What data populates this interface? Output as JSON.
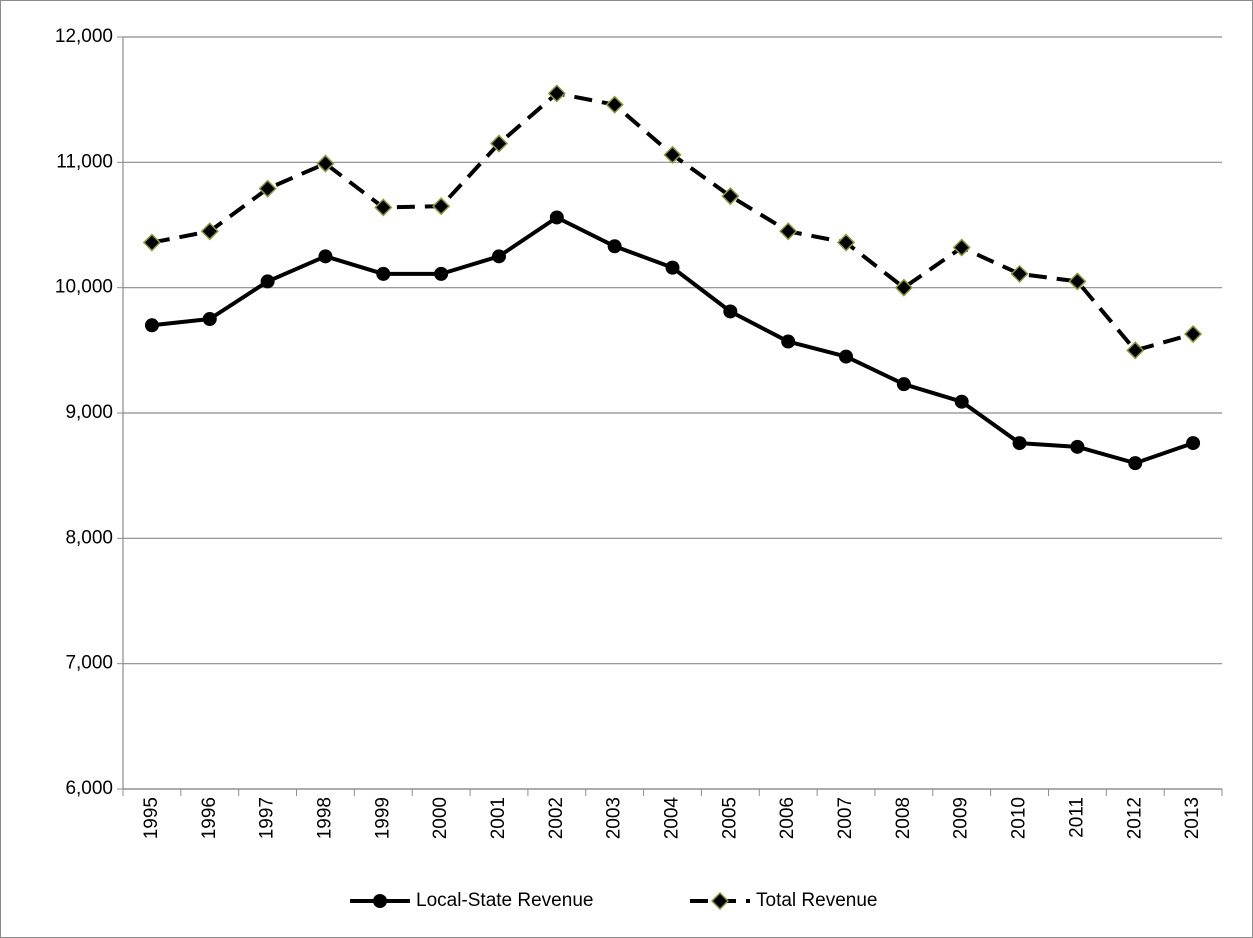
{
  "chart_data": {
    "type": "line",
    "categories": [
      "1995",
      "1996",
      "1997",
      "1998",
      "1999",
      "2000",
      "2001",
      "2002",
      "2003",
      "2004",
      "2005",
      "2006",
      "2007",
      "2008",
      "2009",
      "2010",
      "2011",
      "2012",
      "2013"
    ],
    "series": [
      {
        "name": "Local-State Revenue",
        "color": "#000000",
        "line_style": "solid",
        "marker": "circle",
        "values": [
          9700,
          9750,
          10050,
          10250,
          10110,
          10110,
          10250,
          10560,
          10330,
          10160,
          9810,
          9570,
          9450,
          9230,
          9090,
          8760,
          8730,
          8600,
          8760
        ]
      },
      {
        "name": "Total Revenue",
        "color": "#000000",
        "line_style": "dashed",
        "marker": "diamond",
        "marker_edge": "#8a9a3a",
        "values": [
          10360,
          10450,
          10790,
          10990,
          10640,
          10650,
          11150,
          11550,
          11460,
          11060,
          10730,
          10450,
          10360,
          10000,
          10320,
          10110,
          10050,
          9500,
          9630
        ]
      }
    ],
    "ylim": [
      6000,
      12000
    ],
    "yticks": [
      {
        "value": 6000,
        "label": "6,000"
      },
      {
        "value": 7000,
        "label": "7,000"
      },
      {
        "value": 8000,
        "label": "8,000"
      },
      {
        "value": 9000,
        "label": "9,000"
      },
      {
        "value": 10000,
        "label": "10,000"
      },
      {
        "value": 11000,
        "label": "11,000"
      },
      {
        "value": 12000,
        "label": "12,000"
      }
    ],
    "grid": true,
    "legend": "bottom"
  }
}
